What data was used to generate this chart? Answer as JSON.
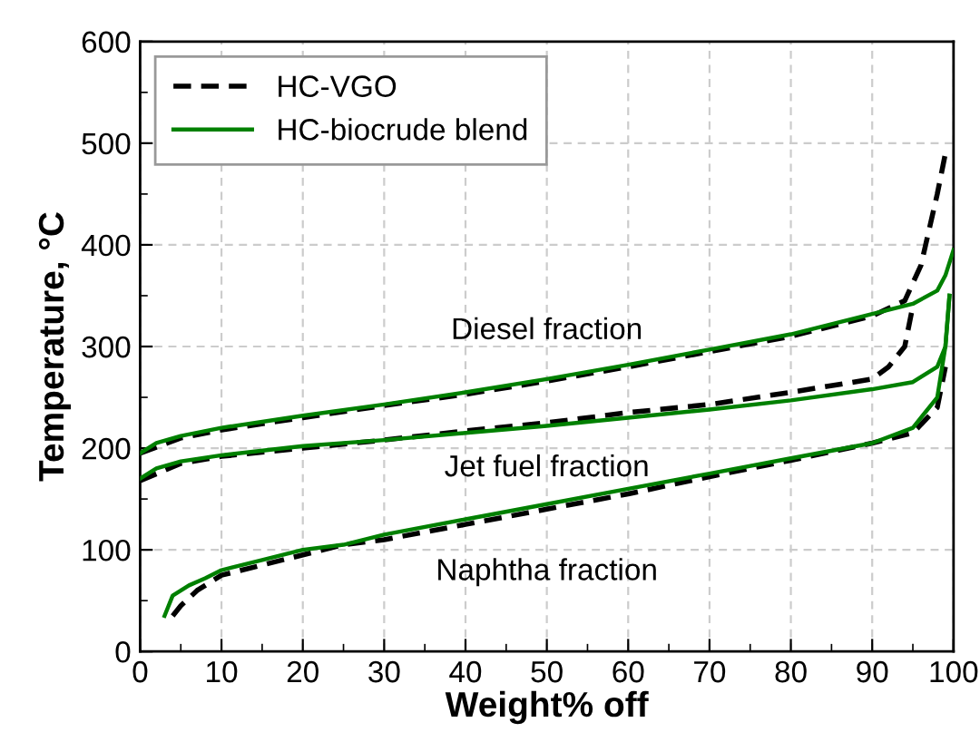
{
  "chart_data": {
    "type": "line",
    "xlabel": "Weight% off",
    "ylabel": "Temperature, °C",
    "xlim": [
      0,
      100
    ],
    "xticks": [
      0,
      10,
      20,
      30,
      40,
      50,
      60,
      70,
      80,
      90,
      100
    ],
    "ylim": [
      0,
      600
    ],
    "yticks": [
      0,
      100,
      200,
      300,
      400,
      500,
      600
    ],
    "grid": true,
    "legend": "top left",
    "marker": "none",
    "series": [
      {
        "name": "HC-VGO",
        "color": "#000000",
        "line_style": "dashed",
        "x": [
          0,
          5,
          10,
          20,
          30,
          40,
          50,
          60,
          70,
          80,
          90,
          94,
          96,
          98,
          99,
          99.5
        ],
        "values": [
          195,
          210,
          218,
          230,
          242,
          253,
          266,
          280,
          295,
          310,
          330,
          345,
          380,
          450,
          490,
          495
        ]
      },
      {
        "name": "HC-biocrude blend",
        "color": "#008000",
        "line_style": "solid",
        "x": [
          0,
          2,
          5,
          10,
          20,
          30,
          40,
          50,
          60,
          70,
          80,
          90,
          95,
          98,
          99,
          100
        ],
        "values": [
          195,
          205,
          212,
          220,
          232,
          243,
          255,
          268,
          282,
          297,
          312,
          332,
          342,
          355,
          370,
          395
        ]
      },
      {
        "color": "#000000",
        "line_style": "dashed",
        "x": [
          0,
          5,
          10,
          20,
          30,
          40,
          50,
          60,
          70,
          80,
          90,
          92,
          94,
          95
        ],
        "values": [
          168,
          185,
          192,
          200,
          208,
          217,
          225,
          235,
          243,
          255,
          268,
          280,
          300,
          340
        ]
      },
      {
        "color": "#008000",
        "line_style": "solid",
        "x": [
          0,
          2,
          5,
          10,
          20,
          30,
          40,
          50,
          60,
          70,
          80,
          90,
          95,
          98,
          99,
          99.5
        ],
        "values": [
          170,
          180,
          187,
          193,
          202,
          208,
          215,
          222,
          230,
          238,
          247,
          258,
          265,
          280,
          300,
          350
        ]
      },
      {
        "color": "#000000",
        "line_style": "dashed",
        "x": [
          4,
          5,
          7,
          10,
          15,
          20,
          25,
          30,
          40,
          50,
          60,
          70,
          80,
          90,
          95,
          98,
          99
        ],
        "values": [
          35,
          45,
          60,
          75,
          85,
          95,
          105,
          110,
          125,
          140,
          155,
          172,
          188,
          205,
          215,
          240,
          280
        ]
      },
      {
        "color": "#008000",
        "line_style": "solid",
        "x": [
          3,
          4,
          6,
          8,
          10,
          15,
          20,
          25,
          30,
          40,
          50,
          60,
          70,
          80,
          90,
          95,
          98,
          99,
          99.5
        ],
        "values": [
          35,
          55,
          65,
          72,
          80,
          90,
          100,
          105,
          115,
          130,
          145,
          160,
          175,
          190,
          205,
          220,
          250,
          300,
          350
        ]
      }
    ],
    "annotations": [
      "Diesel fraction",
      "Jet fuel fraction",
      "Naphtha fraction"
    ]
  }
}
